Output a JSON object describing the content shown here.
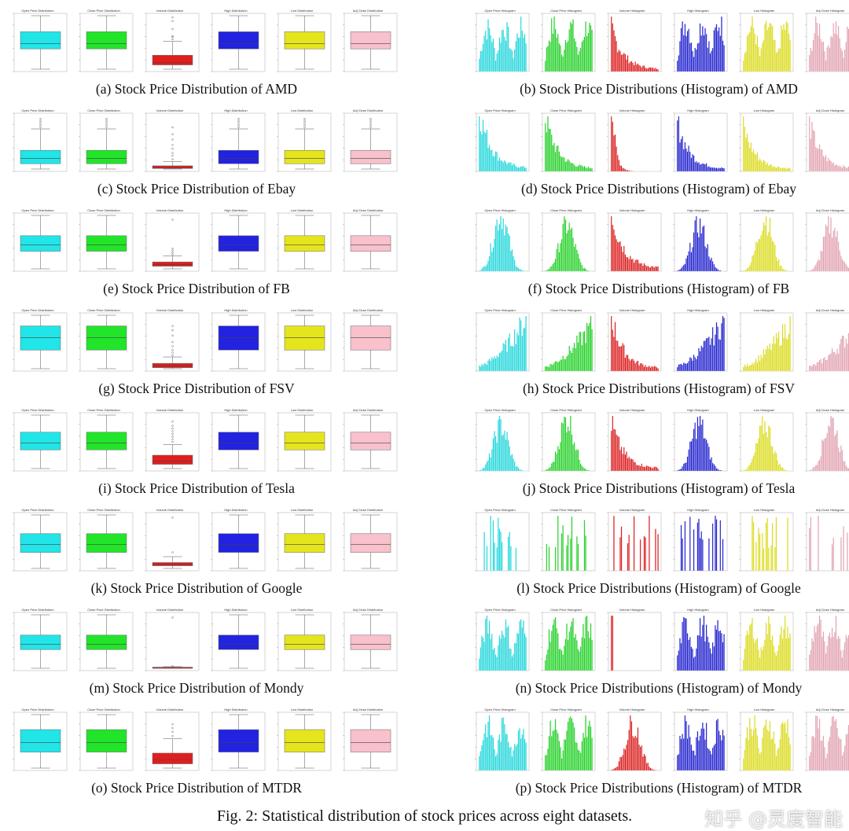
{
  "colors": {
    "box": [
      "#22e5e8",
      "#22e52a",
      "#e01e1e",
      "#2222e0",
      "#e5e51e",
      "#f8c1cc"
    ],
    "hist": [
      "#2ad8dc",
      "#2ad22e",
      "#dc2424",
      "#2828d0",
      "#dcdc24",
      "#e3a6b4"
    ]
  },
  "box_titles": [
    "Open Price Distribution",
    "Close Price Distribution",
    "Volume Distribution",
    "High Distribution",
    "Low Distribution",
    "Adj Close Distribution"
  ],
  "hist_titles": [
    "Open Price Histogram",
    "Close Price Histogram",
    "Volume Histogram",
    "High Histogram",
    "Low Histogram",
    "Adj Close Histogram"
  ],
  "datasets": [
    {
      "name": "AMD",
      "box_caption": "(a) Stock Price Distribution of AMD",
      "hist_caption": "(b) Stock Price Distributions (Histogram) of AMD",
      "price_box": {
        "q1": 0.38,
        "median": 0.48,
        "q3": 0.7,
        "outliers": []
      },
      "volume_box": {
        "q1": 0.08,
        "median": 0.12,
        "q3": 0.26,
        "whisker_high": 0.52,
        "outliers": [
          0.56,
          0.6,
          0.62,
          0.75,
          0.9,
          0.97
        ]
      },
      "hist_shape": "multimodal",
      "volume_shape": "right"
    },
    {
      "name": "Ebay",
      "box_caption": "(c) Stock Price Distribution of Ebay",
      "hist_caption": "(d) Stock Price Distributions (Histogram) of Ebay",
      "price_box": {
        "q1": 0.1,
        "median": 0.2,
        "q3": 0.35,
        "whisker_high": 0.75,
        "outliers": [
          0.78,
          0.82,
          0.86,
          0.9,
          0.94
        ]
      },
      "volume_box": {
        "q1": 0.01,
        "median": 0.03,
        "q3": 0.06,
        "whisker_high": 0.14,
        "outliers": [
          0.18,
          0.25,
          0.3,
          0.38,
          0.45,
          0.55,
          0.65,
          0.78
        ]
      },
      "hist_shape": "right",
      "volume_shape": "spike"
    },
    {
      "name": "FB",
      "box_caption": "(e) Stock Price Distribution of FB",
      "hist_caption": "(f) Stock Price Distributions (Histogram) of FB",
      "price_box": {
        "q1": 0.33,
        "median": 0.45,
        "q3": 0.62,
        "outliers": []
      },
      "volume_box": {
        "q1": 0.05,
        "median": 0.08,
        "q3": 0.13,
        "whisker_high": 0.24,
        "outliers": [
          0.27,
          0.3,
          0.34,
          0.38,
          0.92
        ]
      },
      "hist_shape": "normal",
      "volume_shape": "right"
    },
    {
      "name": "FSV",
      "box_caption": "(g) Stock Price Distribution of FSV",
      "hist_caption": "(h) Stock Price Distributions (Histogram) of FSV",
      "price_box": {
        "q1": 0.35,
        "median": 0.58,
        "q3": 0.8,
        "outliers": []
      },
      "volume_box": {
        "q1": 0.02,
        "median": 0.05,
        "q3": 0.1,
        "whisker_high": 0.22,
        "outliers": [
          0.25,
          0.3,
          0.35,
          0.42,
          0.5,
          0.62,
          0.72,
          0.8
        ]
      },
      "hist_shape": "left",
      "volume_shape": "right"
    },
    {
      "name": "Tesla",
      "box_caption": "(i) Stock Price Distribution of Tesla",
      "hist_caption": "(j) Stock Price Distributions (Histogram) of Tesla",
      "price_box": {
        "q1": 0.35,
        "median": 0.48,
        "q3": 0.68,
        "outliers": []
      },
      "volume_box": {
        "q1": 0.08,
        "median": 0.14,
        "q3": 0.25,
        "whisker_high": 0.45,
        "outliers": [
          0.5,
          0.55,
          0.6,
          0.65,
          0.7,
          0.75,
          0.8,
          0.88
        ]
      },
      "hist_shape": "normal",
      "volume_shape": "right"
    },
    {
      "name": "Google",
      "box_caption": "(k) Stock Price Distribution of Google",
      "hist_caption": "(l) Stock Price Distributions (Histogram) of Google",
      "price_box": {
        "q1": 0.3,
        "median": 0.45,
        "q3": 0.65,
        "outliers": []
      },
      "volume_box": {
        "q1": 0.05,
        "median": 0.08,
        "q3": 0.11,
        "whisker_high": 0.22,
        "outliers": [
          0.3,
          0.95
        ]
      },
      "hist_shape": "sparse",
      "volume_shape": "sparse"
    },
    {
      "name": "Mondy",
      "box_caption": "(m) Stock Price Distribution of Mondy",
      "hist_caption": "(n) Stock Price Distributions (Histogram) of Mondy",
      "price_box": {
        "q1": 0.35,
        "median": 0.45,
        "q3": 0.62,
        "outliers": []
      },
      "volume_box": {
        "q1": 0.01,
        "median": 0.015,
        "q3": 0.02,
        "whisker_high": 0.03,
        "outliers": [
          0.04,
          0.95
        ]
      },
      "hist_shape": "multimodal",
      "volume_shape": "single"
    },
    {
      "name": "MTDR",
      "box_caption": "(o) Stock Price Distribution of MTDR",
      "hist_caption": "(p) Stock Price Distributions (Histogram) of MTDR",
      "price_box": {
        "q1": 0.3,
        "median": 0.48,
        "q3": 0.72,
        "outliers": []
      },
      "volume_box": {
        "q1": 0.08,
        "median": 0.16,
        "q3": 0.28,
        "whisker_high": 0.55,
        "outliers": [
          0.6,
          0.68,
          0.75,
          0.82
        ]
      },
      "hist_shape": "multimodal",
      "volume_shape": "normal"
    }
  ],
  "figure_caption": "Fig. 2: Statistical distribution of stock prices across eight datasets.",
  "watermark": "知乎 @灵度智能"
}
